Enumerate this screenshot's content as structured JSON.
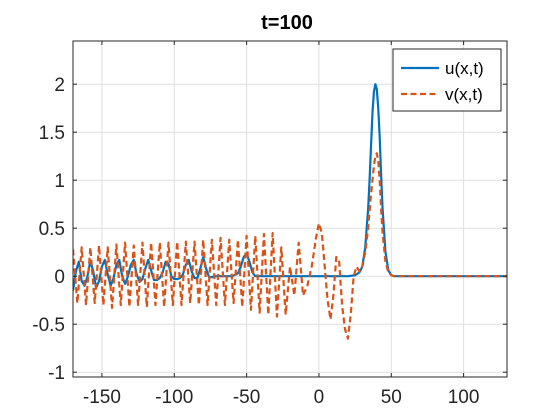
{
  "chart_data": {
    "type": "line",
    "title": "t=100",
    "xlabel": "",
    "ylabel": "",
    "xlim": [
      -170,
      130
    ],
    "ylim": [
      -1.05,
      2.45
    ],
    "xticks": [
      -150,
      -100,
      -50,
      0,
      50,
      100
    ],
    "xtick_labels": [
      "-150",
      "-100",
      "-50",
      "0",
      "50",
      "100"
    ],
    "yticks": [
      -1,
      -0.5,
      0,
      0.5,
      1,
      1.5,
      2
    ],
    "ytick_labels": [
      "-1",
      "-0.5",
      "0",
      "0.5",
      "1",
      "1.5",
      "2"
    ],
    "grid": true,
    "legend_position": "top-right",
    "series": [
      {
        "name": "u(x,t)",
        "color": "#0072BD",
        "style": "solid",
        "x": [
          -170,
          -168,
          -166,
          -164,
          -162,
          -160,
          -158,
          -156,
          -154,
          -152,
          -150,
          -148,
          -146,
          -144,
          -142,
          -140,
          -138,
          -136,
          -134,
          -132,
          -130,
          -128,
          -126,
          -124,
          -122,
          -120,
          -118,
          -116,
          -114,
          -112,
          -110,
          -108,
          -106,
          -104,
          -102,
          -100,
          -98,
          -96,
          -94,
          -92,
          -90,
          -88,
          -86,
          -84,
          -82,
          -80,
          -78,
          -76,
          -74,
          -72,
          -70,
          -65,
          -60,
          -56,
          -54,
          -52,
          -50,
          -48,
          -46,
          -44,
          -40,
          -30,
          -20,
          -10,
          0,
          10,
          20,
          25,
          28,
          30,
          32,
          34,
          35,
          36,
          37,
          38,
          39,
          40,
          41,
          42,
          43,
          44,
          46,
          48,
          50,
          52,
          55,
          60,
          80,
          100,
          130
        ],
        "values": [
          -0.15,
          0.05,
          0.15,
          -0.05,
          -0.1,
          0.0,
          0.16,
          0.05,
          -0.12,
          -0.05,
          0.1,
          0.17,
          0.02,
          -0.1,
          -0.02,
          0.12,
          0.17,
          0.0,
          -0.08,
          0.0,
          0.12,
          0.17,
          0.02,
          -0.06,
          -0.03,
          0.08,
          0.17,
          0.06,
          -0.04,
          -0.04,
          -0.02,
          0.04,
          0.15,
          0.13,
          0.0,
          -0.03,
          -0.03,
          -0.02,
          0.02,
          0.12,
          0.17,
          0.05,
          -0.02,
          -0.02,
          0.08,
          0.2,
          0.08,
          -0.01,
          -0.01,
          0.0,
          0.0,
          0.0,
          0.0,
          0.03,
          0.1,
          0.2,
          0.24,
          0.15,
          0.04,
          0.0,
          0.0,
          0.0,
          0.0,
          0.0,
          0.0,
          0.0,
          0.0,
          0.01,
          0.04,
          0.1,
          0.3,
          0.7,
          1.0,
          1.35,
          1.7,
          1.92,
          2.0,
          1.95,
          1.75,
          1.45,
          1.05,
          0.7,
          0.25,
          0.06,
          0.01,
          0.0,
          0.0,
          0.0,
          0.0,
          0.0,
          0.0
        ]
      },
      {
        "name": "v(x,t)",
        "color": "#D95319",
        "style": "dashed",
        "x": [
          -170,
          -167,
          -164,
          -161,
          -158,
          -155,
          -152,
          -149,
          -146,
          -143,
          -140,
          -137,
          -134,
          -131,
          -128,
          -125,
          -122,
          -119,
          -116,
          -113,
          -110,
          -107,
          -104,
          -101,
          -98,
          -95,
          -92,
          -89,
          -86,
          -83,
          -80,
          -77,
          -74,
          -71,
          -68,
          -65,
          -62,
          -59,
          -56,
          -53,
          -50,
          -47,
          -44,
          -41,
          -38,
          -35,
          -32,
          -29,
          -26,
          -23,
          -20,
          -17,
          -14,
          -11,
          -8,
          -5,
          -2,
          0,
          2,
          4,
          6,
          8,
          10,
          12,
          14,
          16,
          18,
          20,
          22,
          24,
          26,
          28,
          30,
          32,
          34,
          35,
          36,
          37,
          38,
          39,
          40,
          41,
          42,
          43,
          44,
          46,
          48,
          50,
          52,
          55,
          60,
          80,
          100,
          130
        ],
        "values": [
          0.28,
          -0.28,
          0.3,
          -0.3,
          0.3,
          -0.28,
          0.32,
          -0.3,
          0.3,
          -0.33,
          0.33,
          -0.3,
          0.35,
          -0.32,
          0.32,
          -0.3,
          0.35,
          -0.32,
          0.35,
          -0.3,
          0.35,
          -0.32,
          0.35,
          -0.3,
          0.36,
          -0.3,
          0.36,
          -0.28,
          0.36,
          -0.3,
          0.38,
          -0.3,
          0.38,
          -0.3,
          0.4,
          -0.3,
          0.38,
          -0.28,
          0.38,
          -0.32,
          0.42,
          -0.35,
          0.42,
          -0.38,
          0.44,
          -0.4,
          0.45,
          -0.42,
          0.3,
          -0.4,
          0.1,
          -0.2,
          0.35,
          -0.2,
          -0.1,
          0.1,
          0.4,
          0.55,
          0.45,
          0.1,
          -0.25,
          -0.45,
          -0.2,
          0.2,
          0.15,
          -0.3,
          -0.55,
          -0.65,
          -0.4,
          0.0,
          0.1,
          0.05,
          0.1,
          0.25,
          0.5,
          0.68,
          0.85,
          1.0,
          1.15,
          1.25,
          1.28,
          1.2,
          1.0,
          0.7,
          0.45,
          0.15,
          0.04,
          0.01,
          0.0,
          0.0,
          0.0,
          0.0,
          0.0,
          0.0
        ]
      }
    ]
  }
}
